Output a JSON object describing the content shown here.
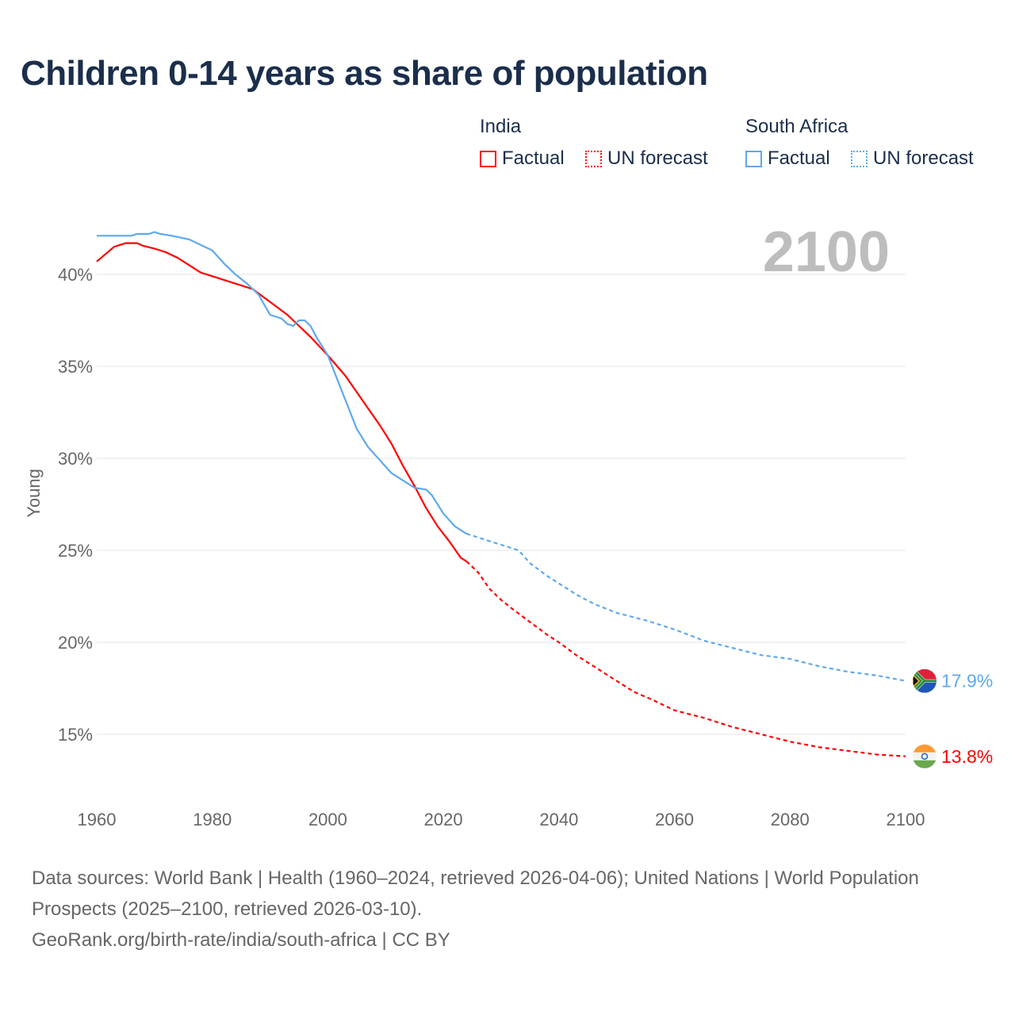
{
  "chart_data": {
    "type": "line",
    "title": "Children 0-14 years as share of population",
    "ylabel": "Young",
    "xlabel": "",
    "xlim": [
      1960,
      2100
    ],
    "ylim": [
      12,
      43
    ],
    "x_ticks": [
      "1960",
      "1980",
      "2000",
      "2020",
      "2040",
      "2060",
      "2080",
      "2100"
    ],
    "y_ticks": [
      {
        "v": 15,
        "label": "15%"
      },
      {
        "v": 20,
        "label": "20%"
      },
      {
        "v": 25,
        "label": "25%"
      },
      {
        "v": 30,
        "label": "30%"
      },
      {
        "v": 35,
        "label": "35%"
      },
      {
        "v": 40,
        "label": "40%"
      }
    ],
    "year_label": "2100",
    "legend": {
      "groups": [
        {
          "name": "India",
          "factual": "Factual",
          "forecast": "UN forecast"
        },
        {
          "name": "South Africa",
          "factual": "Factual",
          "forecast": "UN forecast"
        }
      ]
    },
    "series": [
      {
        "name": "India",
        "color": "#ff0000",
        "end_label": "13.8%",
        "factual": [
          [
            1960,
            40.7
          ],
          [
            1963,
            41.5
          ],
          [
            1965,
            41.7
          ],
          [
            1967,
            41.7
          ],
          [
            1968,
            41.55
          ],
          [
            1970,
            41.4
          ],
          [
            1972,
            41.2
          ],
          [
            1974,
            40.9
          ],
          [
            1976,
            40.5
          ],
          [
            1978,
            40.1
          ],
          [
            1980,
            39.9
          ],
          [
            1983,
            39.6
          ],
          [
            1987,
            39.2
          ],
          [
            1990,
            38.5
          ],
          [
            1993,
            37.8
          ],
          [
            1995,
            37.2
          ],
          [
            1997,
            36.6
          ],
          [
            2000,
            35.6
          ],
          [
            2003,
            34.5
          ],
          [
            2005,
            33.6
          ],
          [
            2007,
            32.7
          ],
          [
            2009,
            31.8
          ],
          [
            2011,
            30.8
          ],
          [
            2013,
            29.6
          ],
          [
            2015,
            28.5
          ],
          [
            2017,
            27.3
          ],
          [
            2019,
            26.3
          ],
          [
            2021,
            25.5
          ],
          [
            2023,
            24.6
          ],
          [
            2024,
            24.4
          ]
        ],
        "forecast": [
          [
            2024,
            24.4
          ],
          [
            2026,
            23.8
          ],
          [
            2028,
            22.9
          ],
          [
            2030,
            22.3
          ],
          [
            2032,
            21.8
          ],
          [
            2035,
            21.1
          ],
          [
            2038,
            20.4
          ],
          [
            2040,
            20.0
          ],
          [
            2043,
            19.3
          ],
          [
            2045,
            18.9
          ],
          [
            2048,
            18.3
          ],
          [
            2050,
            17.9
          ],
          [
            2053,
            17.3
          ],
          [
            2056,
            16.9
          ],
          [
            2060,
            16.3
          ],
          [
            2065,
            15.9
          ],
          [
            2070,
            15.4
          ],
          [
            2075,
            15.0
          ],
          [
            2080,
            14.6
          ],
          [
            2085,
            14.3
          ],
          [
            2090,
            14.1
          ],
          [
            2095,
            13.9
          ],
          [
            2100,
            13.8
          ]
        ]
      },
      {
        "name": "South Africa",
        "color": "#5ea9ec",
        "end_label": "17.9%",
        "factual": [
          [
            1960,
            42.1
          ],
          [
            1966,
            42.1
          ],
          [
            1967,
            42.2
          ],
          [
            1969,
            42.2
          ],
          [
            1970,
            42.3
          ],
          [
            1971,
            42.2
          ],
          [
            1973,
            42.1
          ],
          [
            1976,
            41.9
          ],
          [
            1978,
            41.6
          ],
          [
            1980,
            41.3
          ],
          [
            1982,
            40.6
          ],
          [
            1984,
            40.0
          ],
          [
            1986,
            39.5
          ],
          [
            1988,
            38.9
          ],
          [
            1990,
            37.8
          ],
          [
            1992,
            37.6
          ],
          [
            1993,
            37.3
          ],
          [
            1994,
            37.2
          ],
          [
            1995,
            37.5
          ],
          [
            1996,
            37.5
          ],
          [
            1997,
            37.2
          ],
          [
            1998,
            36.6
          ],
          [
            2000,
            35.6
          ],
          [
            2002,
            34.0
          ],
          [
            2004,
            32.4
          ],
          [
            2005,
            31.6
          ],
          [
            2007,
            30.6
          ],
          [
            2009,
            29.9
          ],
          [
            2011,
            29.2
          ],
          [
            2013,
            28.8
          ],
          [
            2015,
            28.4
          ],
          [
            2017,
            28.3
          ],
          [
            2018,
            28.0
          ],
          [
            2020,
            27.0
          ],
          [
            2022,
            26.3
          ],
          [
            2024,
            25.9
          ]
        ],
        "forecast": [
          [
            2024,
            25.9
          ],
          [
            2025,
            25.8
          ],
          [
            2027,
            25.6
          ],
          [
            2030,
            25.3
          ],
          [
            2033,
            25.0
          ],
          [
            2035,
            24.3
          ],
          [
            2038,
            23.6
          ],
          [
            2040,
            23.2
          ],
          [
            2043,
            22.6
          ],
          [
            2046,
            22.1
          ],
          [
            2050,
            21.6
          ],
          [
            2055,
            21.2
          ],
          [
            2060,
            20.7
          ],
          [
            2065,
            20.1
          ],
          [
            2070,
            19.7
          ],
          [
            2075,
            19.3
          ],
          [
            2080,
            19.1
          ],
          [
            2085,
            18.7
          ],
          [
            2090,
            18.4
          ],
          [
            2095,
            18.2
          ],
          [
            2100,
            17.9
          ]
        ]
      }
    ]
  },
  "footer": {
    "sources": "Data sources: World Bank | Health (1960–2024, retrieved 2026-04-06); United Nations | World Population Prospects (2025–2100, retrieved 2026-03-10).",
    "credit": "GeoRank.org/birth-rate/india/south-africa | CC BY"
  }
}
